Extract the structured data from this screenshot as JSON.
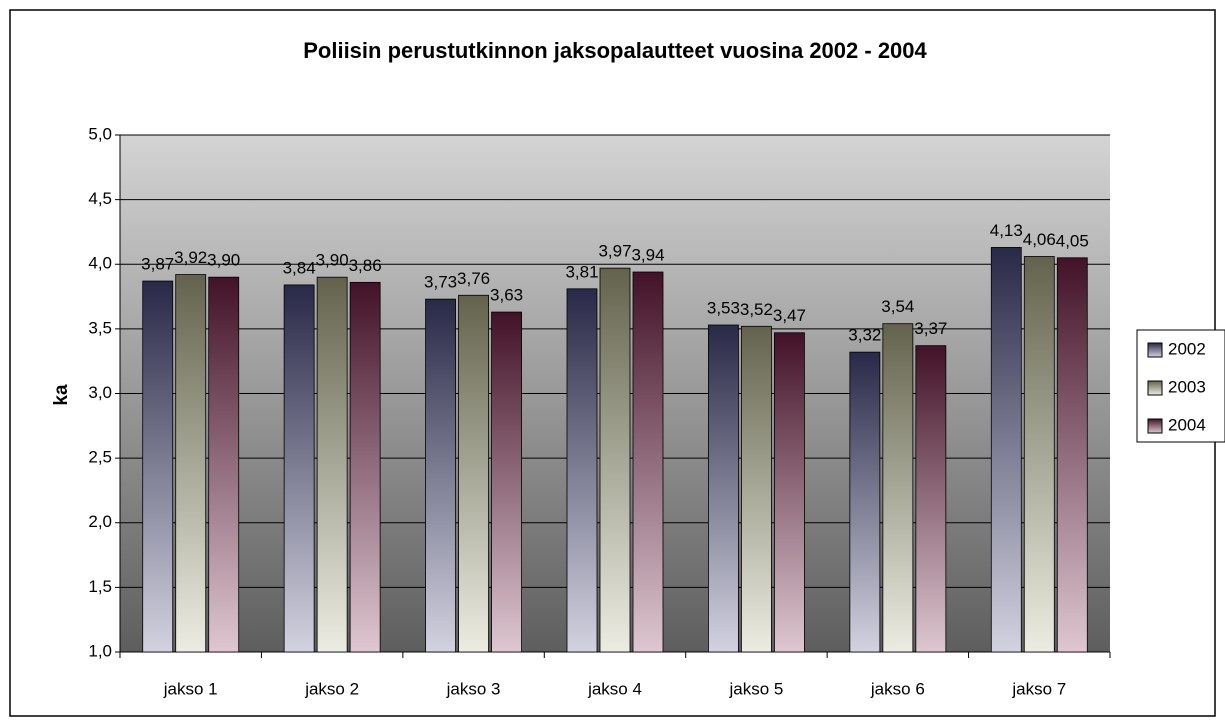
{
  "chart_data": {
    "type": "bar",
    "title": "Poliisin perustutkinnon jaksopalautteet vuosina 2002 - 2004",
    "y_label": "ka",
    "categories": [
      "jakso 1",
      "jakso 2",
      "jakso 3",
      "jakso 4",
      "jakso 5",
      "jakso 6",
      "jakso 7"
    ],
    "series": [
      {
        "name": "2002",
        "color": "#4a4a82",
        "values": [
          3.87,
          3.84,
          3.73,
          3.81,
          3.53,
          3.32,
          4.13
        ],
        "value_labels": [
          "3,87",
          "3,84",
          "3,73",
          "3,81",
          "3,53",
          "3,32",
          "4,13"
        ]
      },
      {
        "name": "2003",
        "color": "#b4b48c",
        "values": [
          3.92,
          3.9,
          3.76,
          3.97,
          3.52,
          3.54,
          4.06
        ],
        "value_labels": [
          "3,92",
          "3,90",
          "3,76",
          "3,97",
          "3,52",
          "3,54",
          "4,06"
        ]
      },
      {
        "name": "2004",
        "color": "#7a2048",
        "values": [
          3.9,
          3.86,
          3.63,
          3.94,
          3.47,
          3.37,
          4.05
        ],
        "value_labels": [
          "3,90",
          "3,86",
          "3,63",
          "3,94",
          "3,47",
          "3,37",
          "4,05"
        ]
      }
    ],
    "ylim": [
      1,
      5
    ],
    "yticks": [
      {
        "value": 1,
        "label": "1,0"
      },
      {
        "value": 1.5,
        "label": "1,5"
      },
      {
        "value": 2,
        "label": "2,0"
      },
      {
        "value": 2.5,
        "label": "2,5"
      },
      {
        "value": 3,
        "label": "3,0"
      },
      {
        "value": 3.5,
        "label": "3,5"
      },
      {
        "value": 4,
        "label": "4,0"
      },
      {
        "value": 4.5,
        "label": "4,5"
      },
      {
        "value": 5,
        "label": "5,0"
      }
    ],
    "grid": true,
    "legend": "right"
  }
}
